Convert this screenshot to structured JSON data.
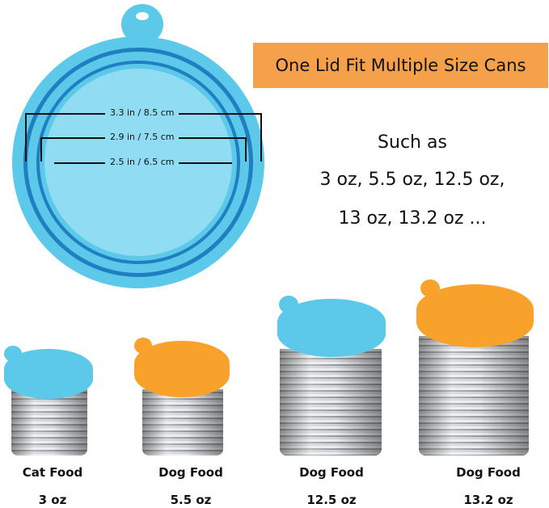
{
  "colors": {
    "blue_lid": "#5cc8ea",
    "orange_lid": "#f9a22b",
    "banner": "#f5a04b"
  },
  "lid_dimensions": [
    "3.3 in / 8.5 cm",
    "2.9 in / 7.5 cm",
    "2.5 in / 6.5 cm"
  ],
  "banner": "One Lid Fit Multiple Size Cans",
  "such_as": "Such as",
  "sizes_line1": "3 oz, 5.5 oz, 12.5 oz,",
  "sizes_line2": "13 oz, 13.2 oz ...",
  "cans": [
    {
      "type": "Cat Food",
      "size": "3 oz",
      "lid": "blue"
    },
    {
      "type": "Dog Food",
      "size": "5.5 oz",
      "lid": "orange"
    },
    {
      "type": "Dog Food",
      "size": "12.5 oz",
      "lid": "blue"
    },
    {
      "type": "Dog Food",
      "size": "13.2 oz",
      "lid": "orange"
    }
  ]
}
